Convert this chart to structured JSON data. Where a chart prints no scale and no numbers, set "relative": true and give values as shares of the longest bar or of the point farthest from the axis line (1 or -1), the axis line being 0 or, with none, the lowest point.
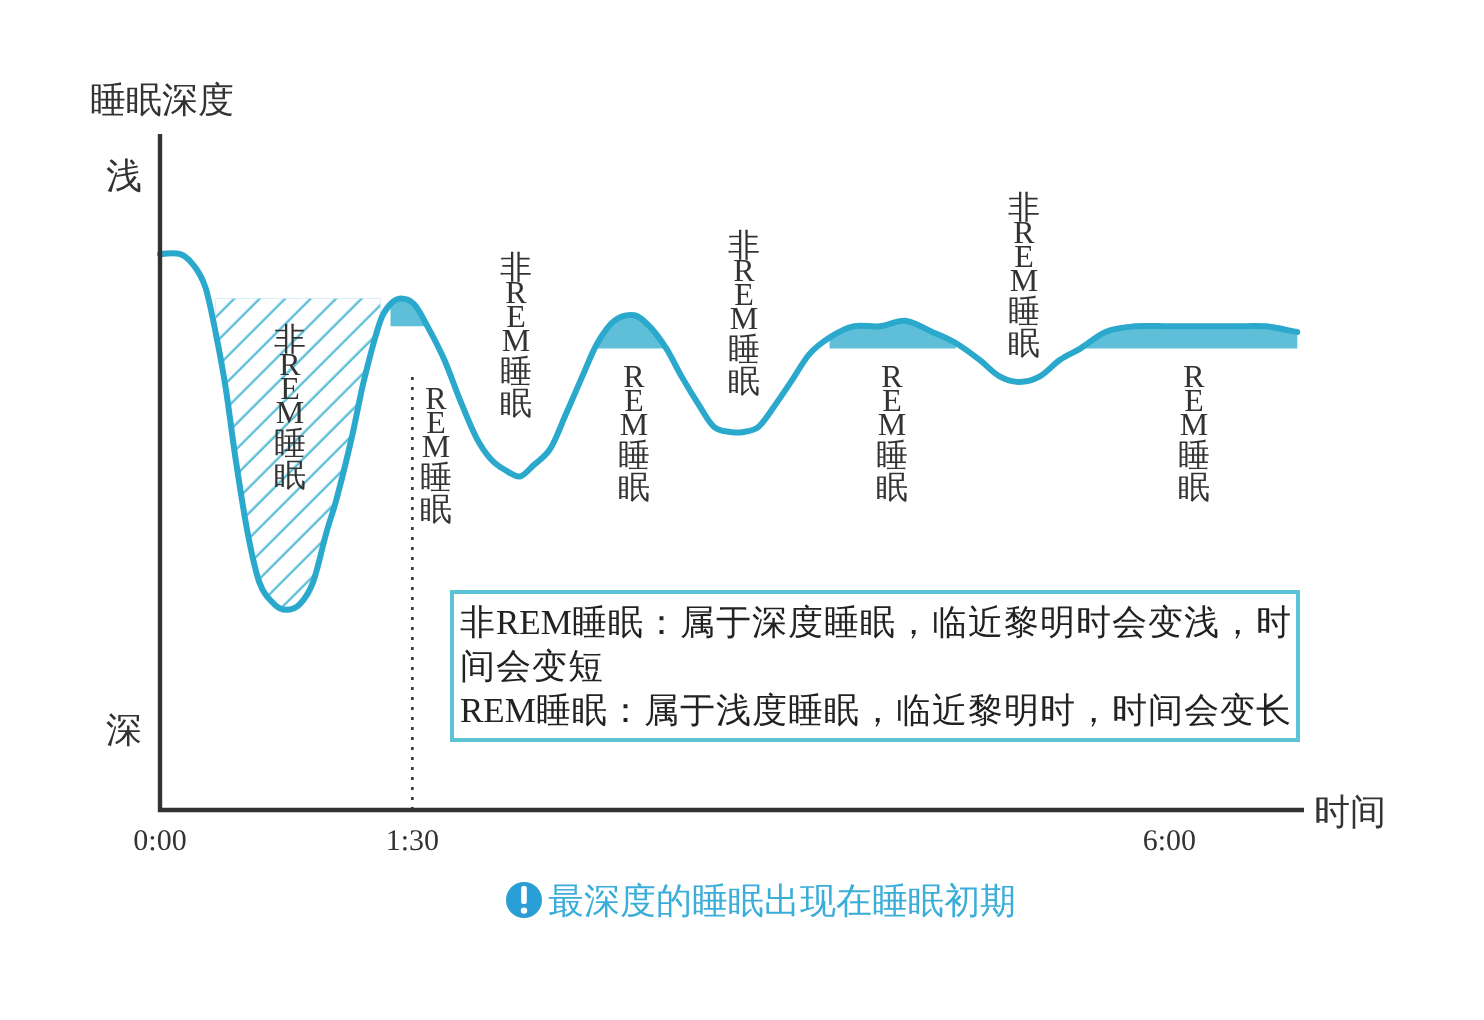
{
  "chart_data": {
    "type": "line",
    "relative": true,
    "xlabel": "时间",
    "ylabel": "睡眠深度",
    "line_style": "solid",
    "xlim": [
      0,
      6.8
    ],
    "xticks": [
      {
        "value": 0,
        "label": "0:00"
      },
      {
        "value": 1.5,
        "label": "1:30"
      },
      {
        "value": 6,
        "label": "6:00"
      }
    ],
    "x": [
      0.0,
      0.12,
      0.2,
      0.27,
      0.33,
      0.39,
      0.45,
      0.52,
      0.59,
      0.68,
      0.75,
      0.83,
      0.91,
      0.99,
      1.05,
      1.14,
      1.21,
      1.31,
      1.37,
      1.43,
      1.51,
      1.59,
      1.69,
      1.78,
      1.88,
      1.97,
      2.06,
      2.14,
      2.22,
      2.32,
      2.41,
      2.51,
      2.6,
      2.7,
      2.82,
      2.91,
      3.01,
      3.1,
      3.2,
      3.29,
      3.39,
      3.47,
      3.56,
      3.66,
      3.75,
      3.86,
      3.98,
      4.12,
      4.28,
      4.43,
      4.59,
      4.73,
      4.87,
      4.99,
      5.11,
      5.23,
      5.35,
      5.47,
      5.62,
      5.79,
      6.0,
      6.18,
      6.38,
      6.57,
      6.76
    ],
    "series": [
      {
        "color": "#2aa9cc",
        "values": [
          1.0,
          1.0,
          0.98,
          0.94,
          0.86,
          0.76,
          0.63,
          0.5,
          0.41,
          0.37,
          0.36,
          0.37,
          0.41,
          0.5,
          0.56,
          0.67,
          0.77,
          0.88,
          0.91,
          0.92,
          0.91,
          0.87,
          0.81,
          0.74,
          0.67,
          0.63,
          0.61,
          0.6,
          0.62,
          0.65,
          0.71,
          0.78,
          0.84,
          0.88,
          0.89,
          0.87,
          0.83,
          0.78,
          0.73,
          0.69,
          0.68,
          0.68,
          0.69,
          0.73,
          0.77,
          0.82,
          0.85,
          0.87,
          0.87,
          0.88,
          0.86,
          0.84,
          0.81,
          0.78,
          0.77,
          0.78,
          0.81,
          0.83,
          0.86,
          0.87,
          0.87,
          0.87,
          0.87,
          0.87,
          0.86
        ],
        "lower": [
          null,
          null,
          null,
          null,
          0.86,
          0.76,
          0.63,
          0.5,
          0.41,
          0.37,
          0.36,
          0.37,
          0.41,
          0.5,
          0.56,
          0.67,
          0.77,
          0.88,
          0.87,
          0.87,
          0.87,
          0.87,
          null,
          null,
          null,
          null,
          null,
          null,
          null,
          null,
          null,
          null,
          0.83,
          0.83,
          0.83,
          0.83,
          0.83,
          null,
          null,
          null,
          null,
          null,
          null,
          null,
          null,
          null,
          0.83,
          0.83,
          0.83,
          0.83,
          0.83,
          0.83,
          null,
          null,
          null,
          null,
          null,
          0.83,
          0.83,
          0.83,
          0.83,
          0.83,
          0.83,
          0.83,
          0.83
        ],
        "upper": [
          null,
          null,
          null,
          null,
          0.92,
          0.92,
          0.92,
          0.92,
          0.92,
          0.92,
          0.92,
          0.92,
          0.92,
          0.92,
          0.92,
          0.92,
          0.92,
          0.92,
          0.91,
          0.92,
          0.91,
          0.87,
          null,
          null,
          null,
          null,
          null,
          null,
          null,
          null,
          null,
          null,
          0.84,
          0.88,
          0.89,
          0.87,
          0.83,
          null,
          null,
          null,
          null,
          null,
          null,
          null,
          null,
          null,
          0.85,
          0.87,
          0.87,
          0.88,
          0.86,
          0.84,
          null,
          null,
          null,
          null,
          null,
          0.83,
          0.86,
          0.87,
          0.87,
          0.87,
          0.87,
          0.87,
          0.86
        ]
      }
    ],
    "ref_lines": [
      {
        "axis": "x",
        "value": 1.5,
        "color": "#333333",
        "line_style": "dotted"
      }
    ],
    "annotations": [
      "浅",
      "非REM睡眠",
      "REM睡眠",
      "非REM睡眠",
      "REM睡眠",
      "非REM睡眠",
      "REM睡眠",
      "非REM睡眠",
      "REM睡眠",
      "非REM睡眠：属于深度睡眠，临近黎明时会变浅，时间会变短",
      "REM睡眠：属于浅度睡眠，临近黎明时，时间会变长",
      "深",
      "最深度的睡眠出现在睡眠初期"
    ]
  }
}
